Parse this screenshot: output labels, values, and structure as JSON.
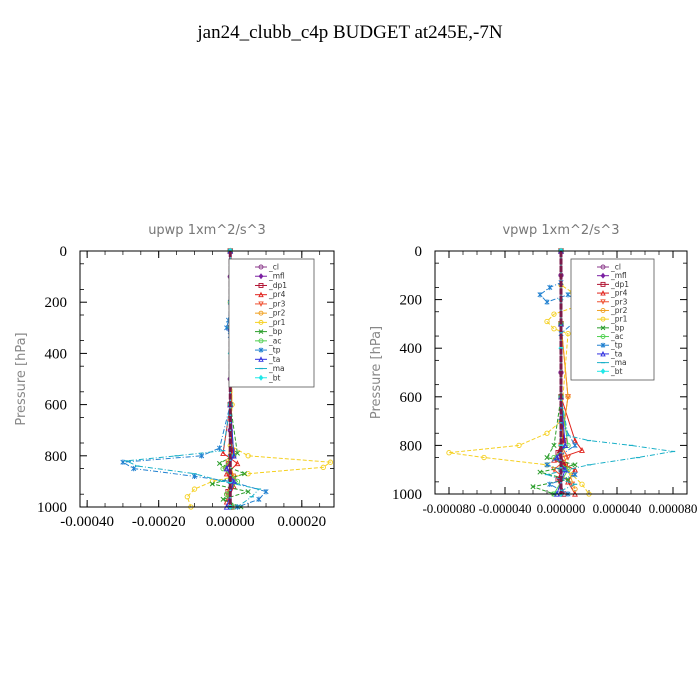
{
  "title": "jan24_clubb_c4p  BUDGET at245E,-7N",
  "colors": {
    "cl": "#8b3a8b",
    "mfl": "#7a1fa2",
    "dp1": "#b01030",
    "pr4": "#e0221c",
    "pr3": "#f05030",
    "pr2": "#f0a020",
    "pr1": "#f5d020",
    "bp": "#2a9d2a",
    "ac": "#50d050",
    "tp": "#2080d0",
    "ta": "#3030e0",
    "ma": "#1ab0c8",
    "bt": "#20e8e8"
  },
  "chart_data": [
    {
      "type": "line",
      "title": "upwp   1xm^2/s^3",
      "xlabel": "",
      "ylabel": "Pressure [hPa]",
      "xlim": [
        -0.00042,
        0.00029
      ],
      "ylim": [
        1000,
        0
      ],
      "xticks": [
        -0.0004,
        -0.0002,
        0.0,
        0.0002
      ],
      "xticklabels": [
        "-0.00040",
        "-0.00020",
        "0.00000",
        "0.00020"
      ],
      "yticks": [
        0,
        200,
        400,
        600,
        800,
        1000
      ],
      "yticklabels": [
        "0",
        "200",
        "400",
        "600",
        "800",
        "1000"
      ],
      "legend_position": "top-right",
      "legend": [
        "_cl",
        "_mfl",
        "_dp1",
        "_pr4",
        "_pr3",
        "_pr2",
        "_pr1",
        "_bp",
        "_ac",
        "_tp",
        "_ta",
        "_ma",
        "_bt"
      ],
      "series": [
        {
          "name": "_cl",
          "key": "cl",
          "x": [
            0,
            0,
            0,
            0,
            0,
            0,
            0,
            0
          ],
          "y": [
            0,
            100,
            300,
            500,
            700,
            800,
            900,
            1000
          ]
        },
        {
          "name": "_mfl",
          "key": "mfl",
          "x": [
            0,
            0,
            0,
            0,
            0,
            0,
            0,
            0
          ],
          "y": [
            0,
            100,
            300,
            500,
            700,
            800,
            900,
            1000
          ]
        },
        {
          "name": "_dp1",
          "key": "dp1",
          "x": [
            0,
            0,
            0,
            5e-06,
            -5e-06,
            8e-06,
            -6e-06,
            4e-06
          ],
          "y": [
            0,
            300,
            600,
            780,
            830,
            880,
            940,
            1000
          ]
        },
        {
          "name": "_pr4",
          "key": "pr4",
          "x": [
            0,
            0,
            0,
            -2e-05,
            2e-05,
            -1e-05,
            1e-05,
            -1e-05
          ],
          "y": [
            0,
            300,
            600,
            790,
            830,
            870,
            920,
            980
          ]
        },
        {
          "name": "_pr3",
          "key": "pr3",
          "x": [
            0,
            0,
            0,
            1e-05,
            -1.5e-05,
            1e-05,
            -5e-06
          ],
          "y": [
            0,
            300,
            600,
            800,
            850,
            900,
            960
          ]
        },
        {
          "name": "_pr2",
          "key": "pr2",
          "x": [
            0,
            0,
            5e-06,
            -5e-06,
            1e-05,
            -1e-05
          ],
          "y": [
            0,
            300,
            600,
            820,
            880,
            950
          ]
        },
        {
          "name": "_pr1",
          "key": "pr1",
          "x": [
            0,
            0,
            5e-06,
            5e-06,
            0,
            5e-05,
            0.00028,
            0.00026,
            5e-05,
            -5e-05,
            -0.0001,
            -0.00012,
            -0.00011
          ],
          "y": [
            0,
            200,
            300,
            600,
            760,
            800,
            825,
            845,
            870,
            900,
            930,
            960,
            1000
          ]
        },
        {
          "name": "_bp",
          "key": "bp",
          "x": [
            0,
            0,
            0,
            2e-05,
            -3e-05,
            4e-05,
            -5e-05,
            5e-05,
            -2e-05,
            3e-05
          ],
          "y": [
            0,
            300,
            600,
            790,
            830,
            870,
            910,
            940,
            970,
            1000
          ]
        },
        {
          "name": "_ac",
          "key": "ac",
          "x": [
            0,
            0,
            0,
            1e-05,
            -2e-05,
            2e-05,
            -1e-05,
            1e-05
          ],
          "y": [
            0,
            300,
            600,
            800,
            850,
            900,
            950,
            1000
          ]
        },
        {
          "name": "_tp",
          "key": "tp",
          "x": [
            0,
            0,
            -5e-06,
            -1e-05,
            0,
            0,
            -3e-05,
            -8e-05,
            -0.0003,
            -0.00027,
            -0.0001,
            0,
            0.0001,
            8e-05,
            2e-05
          ],
          "y": [
            0,
            200,
            270,
            300,
            330,
            600,
            770,
            800,
            825,
            850,
            880,
            900,
            940,
            970,
            1000
          ]
        },
        {
          "name": "_ta",
          "key": "ta",
          "x": [
            0,
            0,
            0,
            1e-05,
            -1e-05,
            1e-05,
            -1e-05
          ],
          "y": [
            0,
            300,
            600,
            800,
            850,
            900,
            1000
          ]
        },
        {
          "name": "_ma",
          "key": "ma",
          "x": [
            0,
            0,
            0,
            -2e-05,
            -0.00015,
            -0.00029,
            -0.00026,
            -0.0001,
            -2e-05,
            8e-05,
            6e-05,
            2e-05
          ],
          "y": [
            0,
            300,
            600,
            780,
            800,
            820,
            840,
            870,
            900,
            930,
            960,
            1000
          ]
        },
        {
          "name": "_bt",
          "key": "bt",
          "x": [
            0,
            0,
            0,
            0,
            0,
            0,
            0
          ],
          "y": [
            0,
            200,
            400,
            600,
            800,
            900,
            1000
          ]
        }
      ]
    },
    {
      "type": "line",
      "title": "vpwp   1xm^2/s^3",
      "xlabel": "",
      "ylabel": "Pressure [hPa]",
      "xlim": [
        -9e-05,
        9e-05
      ],
      "ylim": [
        1000,
        0
      ],
      "xticks": [
        -8e-05,
        -4e-05,
        0.0,
        4e-05,
        8e-05
      ],
      "xticklabels": [
        "-0.000080",
        "-0.000040",
        "0.000000",
        "0.000040",
        "0.000080"
      ],
      "yticks": [
        0,
        200,
        400,
        600,
        800,
        1000
      ],
      "yticklabels": [
        "0",
        "200",
        "400",
        "600",
        "800",
        "1000"
      ],
      "legend_position": "top-right",
      "legend": [
        "_cl",
        "_mfl",
        "_dp1",
        "_pr4",
        "_pr3",
        "_pr2",
        "_pr1",
        "_bp",
        "_ac",
        "_tp",
        "_ta",
        "_ma",
        "_bt"
      ],
      "series": [
        {
          "name": "_cl",
          "key": "cl",
          "x": [
            0,
            0,
            0,
            0,
            0,
            0,
            0,
            0
          ],
          "y": [
            0,
            100,
            300,
            500,
            700,
            800,
            900,
            1000
          ]
        },
        {
          "name": "_mfl",
          "key": "mfl",
          "x": [
            0,
            0,
            0,
            0,
            0,
            0,
            0,
            0
          ],
          "y": [
            0,
            100,
            300,
            500,
            700,
            800,
            900,
            1000
          ]
        },
        {
          "name": "_dp1",
          "key": "dp1",
          "x": [
            0,
            0,
            0,
            2e-06,
            -2e-06,
            3e-06,
            -2e-06,
            2e-06
          ],
          "y": [
            0,
            300,
            600,
            780,
            830,
            880,
            940,
            1000
          ]
        },
        {
          "name": "_pr4",
          "key": "pr4",
          "x": [
            0,
            0,
            0,
            1e-05,
            1.5e-05,
            -5e-06,
            1e-05,
            5e-06,
            1e-05
          ],
          "y": [
            0,
            300,
            600,
            780,
            820,
            860,
            900,
            950,
            1000
          ]
        },
        {
          "name": "_pr3",
          "key": "pr3",
          "x": [
            0,
            0,
            5e-06,
            0,
            5e-06,
            -5e-06,
            8e-06
          ],
          "y": [
            0,
            300,
            600,
            800,
            850,
            900,
            960
          ]
        },
        {
          "name": "_pr2",
          "key": "pr2",
          "x": [
            0,
            0,
            5e-06,
            0,
            5e-06,
            1e-05
          ],
          "y": [
            0,
            300,
            600,
            800,
            900,
            980
          ]
        },
        {
          "name": "_pr1",
          "key": "pr1",
          "x": [
            0,
            0,
            8e-06,
            1.5e-05,
            1e-05,
            -5e-06,
            -1e-05,
            -5e-06,
            5e-06,
            0,
            -1e-05,
            -3e-05,
            -8e-05,
            -5.5e-05,
            -1e-05,
            8e-06,
            1.5e-05,
            2e-05
          ],
          "y": [
            0,
            140,
            170,
            200,
            230,
            260,
            290,
            320,
            340,
            700,
            750,
            800,
            830,
            850,
            880,
            920,
            960,
            1000
          ]
        },
        {
          "name": "_bp",
          "key": "bp",
          "x": [
            0,
            0,
            0,
            -5e-06,
            -1e-05,
            1e-05,
            -1.5e-05,
            5e-06,
            -2e-05,
            -5e-06
          ],
          "y": [
            0,
            300,
            600,
            800,
            850,
            880,
            910,
            940,
            970,
            1000
          ]
        },
        {
          "name": "_ac",
          "key": "ac",
          "x": [
            0,
            0,
            0,
            5e-06,
            -5e-06,
            5e-06,
            -5e-06
          ],
          "y": [
            0,
            300,
            600,
            800,
            850,
            900,
            1000
          ]
        },
        {
          "name": "_tp",
          "key": "tp",
          "x": [
            0,
            0,
            -8e-06,
            -1.5e-05,
            -1e-05,
            5e-06,
            1e-05,
            1.5e-05,
            1e-05,
            0,
            0,
            1e-05,
            -1e-05,
            1e-05,
            -8e-06,
            5e-06
          ],
          "y": [
            0,
            130,
            150,
            180,
            210,
            180,
            200,
            250,
            290,
            340,
            700,
            800,
            880,
            920,
            960,
            1000
          ]
        },
        {
          "name": "_ta",
          "key": "ta",
          "x": [
            0,
            0,
            0,
            3e-06,
            -3e-06,
            3e-06,
            -3e-06
          ],
          "y": [
            0,
            300,
            600,
            800,
            850,
            900,
            1000
          ]
        },
        {
          "name": "_ma",
          "key": "ma",
          "x": [
            0,
            0,
            0,
            5e-06,
            2e-05,
            5e-05,
            8e-05,
            5.5e-05,
            2e-05,
            -1e-05,
            1e-05,
            -5e-06
          ],
          "y": [
            0,
            300,
            600,
            760,
            780,
            800,
            825,
            850,
            880,
            920,
            960,
            1000
          ]
        },
        {
          "name": "_bt",
          "key": "bt",
          "x": [
            0,
            0,
            0,
            0,
            0,
            0,
            0
          ],
          "y": [
            0,
            200,
            400,
            600,
            800,
            900,
            1000
          ]
        }
      ]
    }
  ]
}
